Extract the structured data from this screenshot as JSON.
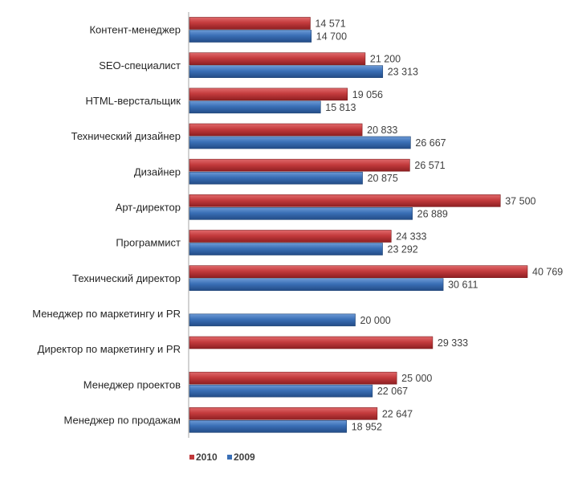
{
  "chart_data": {
    "type": "bar",
    "orientation": "horizontal",
    "categories": [
      "Контент-менеджер",
      "SEO-специалист",
      "HTML-верстальщик",
      "Технический дизайнер",
      "Дизайнер",
      "Арт-директор",
      "Программист",
      "Технический директор",
      "Менеджер по маркетингу и PR",
      "Директор по маркетингу и PR",
      "Менеджер проектов",
      "Менеджер по продажам"
    ],
    "series": [
      {
        "name": "2010",
        "color": "#c0383a",
        "values": [
          14571,
          21200,
          19056,
          20833,
          26571,
          37500,
          24333,
          40769,
          null,
          29333,
          25000,
          22647
        ],
        "labels": [
          "14 571",
          "21 200",
          "19 056",
          "20 833",
          "26 571",
          "37 500",
          "24 333",
          "40 769",
          null,
          "29 333",
          "25 000",
          "22 647"
        ]
      },
      {
        "name": "2009",
        "color": "#3a6fb6",
        "values": [
          14700,
          23313,
          15813,
          26667,
          20875,
          26889,
          23292,
          30611,
          20000,
          null,
          22067,
          18952
        ],
        "labels": [
          "14 700",
          "23 313",
          "15 813",
          "26 667",
          "20 875",
          "26 889",
          "23 292",
          "30 611",
          "20 000",
          null,
          "22 067",
          "18 952"
        ]
      }
    ],
    "xlim": [
      0,
      41000
    ],
    "grid": false,
    "legend_position": "bottom-left"
  }
}
